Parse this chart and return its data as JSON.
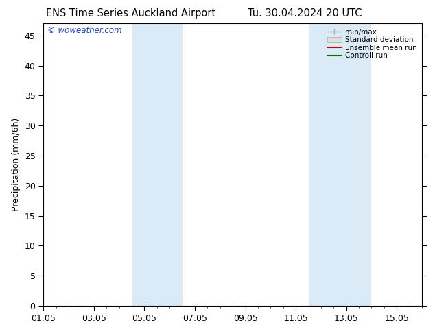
{
  "title_left": "ENS Time Series Auckland Airport",
  "title_right": "Tu. 30.04.2024 20 UTC",
  "ylabel": "Precipitation (mm/6h)",
  "ylim": [
    0,
    47
  ],
  "yticks": [
    0,
    5,
    10,
    15,
    20,
    25,
    30,
    35,
    40,
    45
  ],
  "xlim": [
    0,
    15
  ],
  "xtick_labels": [
    "01.05",
    "03.05",
    "05.05",
    "07.05",
    "09.05",
    "11.05",
    "13.05",
    "15.05"
  ],
  "xtick_positions": [
    0,
    2,
    4,
    6,
    8,
    10,
    12,
    14
  ],
  "blue_bands": [
    {
      "start": 3.5,
      "end": 5.5
    },
    {
      "start": 10.5,
      "end": 13.0
    }
  ],
  "band_color": "#daeaf7",
  "watermark": "© woweather.com",
  "watermark_color": "#2244bb",
  "legend_labels": [
    "min/max",
    "Standard deviation",
    "Ensemble mean run",
    "Controll run"
  ],
  "minmax_color": "#aaaaaa",
  "std_color": "#cccccc",
  "ensemble_color": "#cc0000",
  "control_color": "#007700",
  "background_color": "#ffffff",
  "font_size": 9,
  "title_font_size": 10.5
}
